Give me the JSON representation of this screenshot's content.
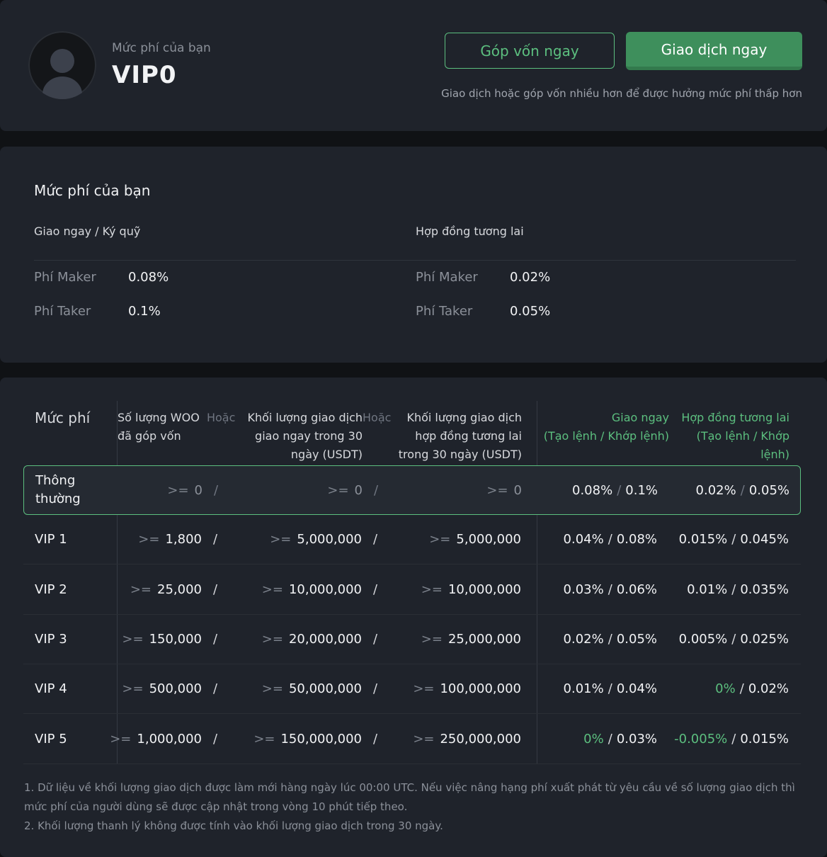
{
  "account": {
    "fee_label": "Mức phí của bạn",
    "vip_level": "VIP0",
    "contribute_button": "Góp vốn ngay",
    "trade_button": "Giao dịch ngay",
    "hint": "Giao dịch hoặc góp vốn nhiều hơn để được hưởng mức phí thấp hơn"
  },
  "my_fees": {
    "title": "Mức phí của bạn",
    "spot": {
      "title": "Giao ngay / Ký quỹ",
      "maker_label": "Phí Maker",
      "maker_value": "0.08%",
      "taker_label": "Phí Taker",
      "taker_value": "0.1%"
    },
    "futures": {
      "title": "Hợp đồng tương lai",
      "maker_label": "Phí Maker",
      "maker_value": "0.02%",
      "taker_label": "Phí Taker",
      "taker_value": "0.05%"
    }
  },
  "tier_table": {
    "headers": {
      "tier": "Mức phí",
      "woo_line1": "Số lượng WOO",
      "woo_line2": "đã góp vốn",
      "or1": "Hoặc",
      "spot_vol_line1": "Khối lượng giao dịch",
      "spot_vol_line2": "giao ngay trong 30",
      "spot_vol_line3": "ngày (USDT)",
      "or2": "Hoặc",
      "fut_vol_line1": "Khối lượng giao dịch",
      "fut_vol_line2": "hợp đồng tương lai",
      "fut_vol_line3": "trong 30 ngày (USDT)",
      "spot_fee_line1": "Giao ngay",
      "spot_fee_line2": "(Tạo lệnh / Khớp lệnh)",
      "fut_fee_line1": "Hợp đồng tương lai",
      "fut_fee_line2": "(Tạo lệnh / Khớp",
      "fut_fee_line3": "lệnh)"
    },
    "gte": ">=",
    "slash": "/",
    "rows": [
      {
        "name_line1": "Thông",
        "name_line2": "thường",
        "woo": "0",
        "spot_vol": "0",
        "fut_vol": "0",
        "spot_maker": "0.08%",
        "spot_taker": "0.1%",
        "fut_maker": "0.02%",
        "fut_taker": "0.05%"
      },
      {
        "name": "VIP 1",
        "woo": "1,800",
        "spot_vol": "5,000,000",
        "fut_vol": "5,000,000",
        "spot_maker": "0.04%",
        "spot_taker": "0.08%",
        "fut_maker": "0.015%",
        "fut_taker": "0.045%"
      },
      {
        "name": "VIP 2",
        "woo": "25,000",
        "spot_vol": "10,000,000",
        "fut_vol": "10,000,000",
        "spot_maker": "0.03%",
        "spot_taker": "0.06%",
        "fut_maker": "0.01%",
        "fut_taker": "0.035%"
      },
      {
        "name": "VIP 3",
        "woo": "150,000",
        "spot_vol": "20,000,000",
        "fut_vol": "25,000,000",
        "spot_maker": "0.02%",
        "spot_taker": "0.05%",
        "fut_maker": "0.005%",
        "fut_taker": "0.025%"
      },
      {
        "name": "VIP 4",
        "woo": "500,000",
        "spot_vol": "50,000,000",
        "fut_vol": "100,000,000",
        "spot_maker": "0.01%",
        "spot_taker": "0.04%",
        "fut_maker": "0%",
        "fut_taker": "0.02%"
      },
      {
        "name": "VIP 5",
        "woo": "1,000,000",
        "spot_vol": "150,000,000",
        "fut_vol": "250,000,000",
        "spot_maker": "0%",
        "spot_taker": "0.03%",
        "fut_maker": "-0.005%",
        "fut_taker": "0.015%"
      }
    ]
  },
  "notes": {
    "note1": "1. Dữ liệu về khối lượng giao dịch được làm mới hàng ngày lúc 00:00 UTC. Nếu việc nâng hạng phí xuất phát từ yêu cầu về số lượng giao dịch thì mức phí của người dùng sẽ được cập nhật trong vòng 10 phút tiếp theo.",
    "note2": "2. Khối lượng thanh lý không được tính vào khối lượng giao dịch trong 30 ngày."
  },
  "colors": {
    "accent_green": "#5cbf7f",
    "button_green": "#3e8f5c",
    "card_bg": "#1f232b",
    "page_bg": "#101215"
  }
}
